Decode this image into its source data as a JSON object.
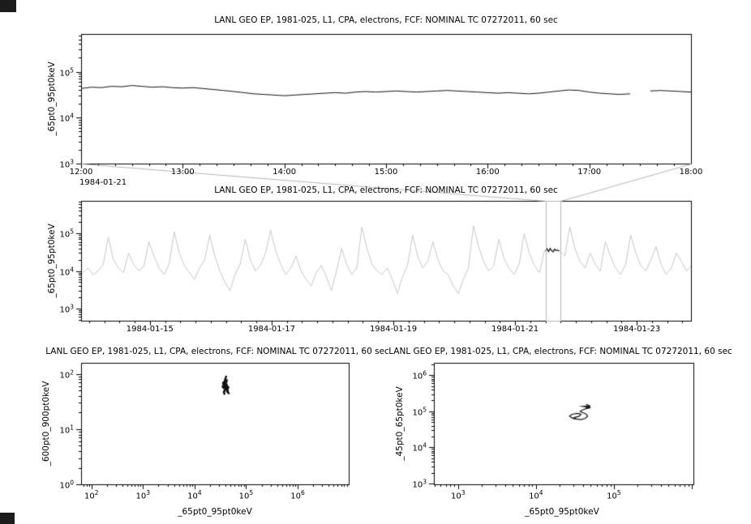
{
  "window": {
    "bg": "#ffffff",
    "corner_color": "#1c1c1c"
  },
  "chart_data": [
    {
      "type": "line",
      "title": "LANL GEO EP, 1981-025, L1, CPA, electrons, FCF: NOMINAL TC 07272011, 60 sec",
      "ylabel": "_65pt0_95pt0keV",
      "xlabel": "",
      "x_context_label": "1984-01-21",
      "xscale": "linear",
      "yscale": "log",
      "xlim": [
        12,
        18
      ],
      "ylim": [
        1000,
        660000
      ],
      "x_minor_step": 0.166667,
      "x_ticks": [
        {
          "v": 12,
          "label": "12:00"
        },
        {
          "v": 13,
          "label": "13:00"
        },
        {
          "v": 14,
          "label": "14:00"
        },
        {
          "v": 15,
          "label": "15:00"
        },
        {
          "v": 16,
          "label": "16:00"
        },
        {
          "v": 17,
          "label": "17:00"
        },
        {
          "v": 18,
          "label": "18:00"
        }
      ],
      "y_tick_exps": [
        3,
        4,
        5
      ],
      "series": [
        {
          "name": "_65pt0_95pt0keV flux",
          "color": "#111111",
          "width": 1,
          "x_start": 12.0,
          "x_step": 0.1,
          "y": [
            43000,
            46000,
            45000,
            48000,
            47000,
            50000,
            48000,
            46000,
            47000,
            45000,
            44000,
            45000,
            43000,
            41000,
            39000,
            37000,
            35000,
            33000,
            32000,
            31000,
            30000,
            31000,
            32000,
            33000,
            34000,
            35000,
            34000,
            36000,
            37000,
            36000,
            37000,
            38000,
            37000,
            36000,
            37000,
            38000,
            39000,
            38000,
            37000,
            36000,
            35000,
            34000,
            35000,
            34000,
            33000,
            34000,
            36000,
            38000,
            40000,
            39000,
            36000,
            34000,
            33000,
            32000,
            33000,
            null,
            38000,
            39000,
            38000,
            37000,
            36000
          ]
        }
      ]
    },
    {
      "type": "line",
      "title": "LANL GEO EP, 1981-025, L1, CPA, electrons, FCF: NOMINAL TC 07272011, 60 sec",
      "ylabel": "_65pt0_95pt0keV",
      "xlabel": "",
      "xscale": "linear",
      "yscale": "log",
      "xlim": [
        13.87,
        23.89
      ],
      "ylim": [
        470,
        740000
      ],
      "x_minor_step": 0.25,
      "x_ticks": [
        {
          "v": 15,
          "label": "1984-01-15"
        },
        {
          "v": 17,
          "label": "1984-01-17"
        },
        {
          "v": 19,
          "label": "1984-01-19"
        },
        {
          "v": 21,
          "label": "1984-01-21"
        },
        {
          "v": 23,
          "label": "1984-01-23"
        }
      ],
      "y_tick_exps": [
        3,
        4,
        5
      ],
      "zoom_region": {
        "x0": 21.5,
        "x1": 21.75,
        "color": "#b4b4b4",
        "from_chart": 0
      },
      "series": [
        {
          "name": "context overview",
          "color": "#c6c6c6",
          "width": 1,
          "x_start": 13.9,
          "x_step": 0.08333,
          "y": [
            9000,
            12000,
            8000,
            10000,
            15000,
            80000,
            20000,
            12000,
            9000,
            30000,
            15000,
            10000,
            13000,
            60000,
            25000,
            12000,
            8000,
            15000,
            110000,
            30000,
            14000,
            9000,
            6000,
            12000,
            20000,
            90000,
            25000,
            10000,
            5000,
            3000,
            8000,
            15000,
            70000,
            20000,
            10000,
            14000,
            30000,
            120000,
            35000,
            15000,
            8000,
            12000,
            25000,
            10000,
            6000,
            4000,
            9000,
            14000,
            7000,
            3000,
            10000,
            40000,
            15000,
            8000,
            12000,
            150000,
            40000,
            15000,
            10000,
            8000,
            12000,
            6000,
            2500,
            7000,
            14000,
            90000,
            25000,
            12000,
            18000,
            60000,
            20000,
            10000,
            8000,
            4000,
            2500,
            6000,
            12000,
            160000,
            45000,
            18000,
            10000,
            14000,
            70000,
            22000,
            12000,
            8000,
            15000,
            100000,
            30000,
            14000,
            9000,
            35000,
            33000,
            38000,
            34000,
            25000,
            150000,
            40000,
            18000,
            12000,
            30000,
            15000,
            10000,
            60000,
            25000,
            12000,
            8000,
            15000,
            90000,
            30000,
            14000,
            10000,
            20000,
            45000,
            15000,
            8000,
            12000,
            30000,
            18000,
            10000,
            14000
          ]
        },
        {
          "name": "selected interval",
          "color": "#111111",
          "width": 1.2,
          "x_start": 21.5,
          "x_step": 0.025,
          "y": [
            34000,
            39000,
            33000,
            40000,
            35000,
            32000,
            38000,
            35000,
            36000,
            34000
          ]
        }
      ]
    },
    {
      "type": "scatter",
      "title": "LANL GEO EP, 1981-025, L1, CPA, electrons, FCF: NOMINAL TC 07272011, 60 sec",
      "xlabel": "_65pt0_95pt0keV",
      "ylabel": "_600pt0_900pt0keV",
      "xscale": "log",
      "yscale": "log",
      "xlim": [
        63,
        9800000
      ],
      "ylim": [
        1,
        160
      ],
      "x_tick_exps": [
        2,
        3,
        4,
        5,
        6
      ],
      "y_tick_exps": [
        0,
        1,
        2
      ],
      "series": [
        {
          "name": "600-900 keV vs 65-95 keV",
          "color": "#111111",
          "x": [
            38000,
            41000,
            36000,
            44000,
            39000,
            42000,
            37000,
            46000,
            40000,
            35000,
            43000,
            39000,
            41000,
            38000,
            45000,
            40000,
            37000,
            42000,
            36000,
            44000,
            39000,
            41000,
            38000,
            40000,
            43000,
            37000,
            42000,
            39000,
            36000,
            45000,
            41000,
            38000,
            40000,
            42000,
            39000,
            37000,
            44000,
            40000,
            36000,
            41000,
            43000,
            38000,
            39000,
            42000,
            40000,
            37000,
            41000,
            39000,
            45000,
            38000
          ],
          "y": [
            62,
            55,
            70,
            48,
            80,
            58,
            65,
            45,
            72,
            60,
            52,
            68,
            75,
            50,
            57,
            63,
            47,
            78,
            66,
            54,
            59,
            71,
            49,
            85,
            61,
            56,
            74,
            52,
            67,
            58,
            90,
            44,
            64,
            53,
            76,
            60,
            50,
            69,
            57,
            62,
            48,
            73,
            55,
            65,
            59,
            70,
            52,
            61,
            46,
            67
          ]
        }
      ]
    },
    {
      "type": "line",
      "title": "LANL GEO EP, 1981-025, L1, CPA, electrons, FCF: NOMINAL TC 07272011, 60 sec",
      "xlabel": "_65pt0_95pt0keV",
      "ylabel": "_45pt0_65pt0keV",
      "xscale": "log",
      "yscale": "log",
      "xlim": [
        490,
        1050000
      ],
      "ylim": [
        950,
        2200000
      ],
      "x_tick_exps": [
        3,
        4,
        5
      ],
      "y_tick_exps": [
        3,
        4,
        5,
        6
      ],
      "series": [
        {
          "name": "45-65 keV vs 65-95 keV trajectory",
          "color": "#111111",
          "width": 1.2,
          "arrow": true,
          "x": [
            32000,
            29000,
            27000,
            29000,
            34000,
            38000,
            36000,
            31000,
            33000,
            38000,
            43000,
            46000,
            44000,
            40000,
            37000,
            40000,
            44000,
            49000,
            45000,
            40000,
            44000,
            50000
          ],
          "y": [
            60000,
            66000,
            74000,
            83000,
            88000,
            83000,
            73000,
            67000,
            61000,
            59000,
            64000,
            73000,
            84000,
            92000,
            100000,
            110000,
            118000,
            124000,
            133000,
            137000,
            140000,
            138000
          ]
        }
      ]
    }
  ]
}
